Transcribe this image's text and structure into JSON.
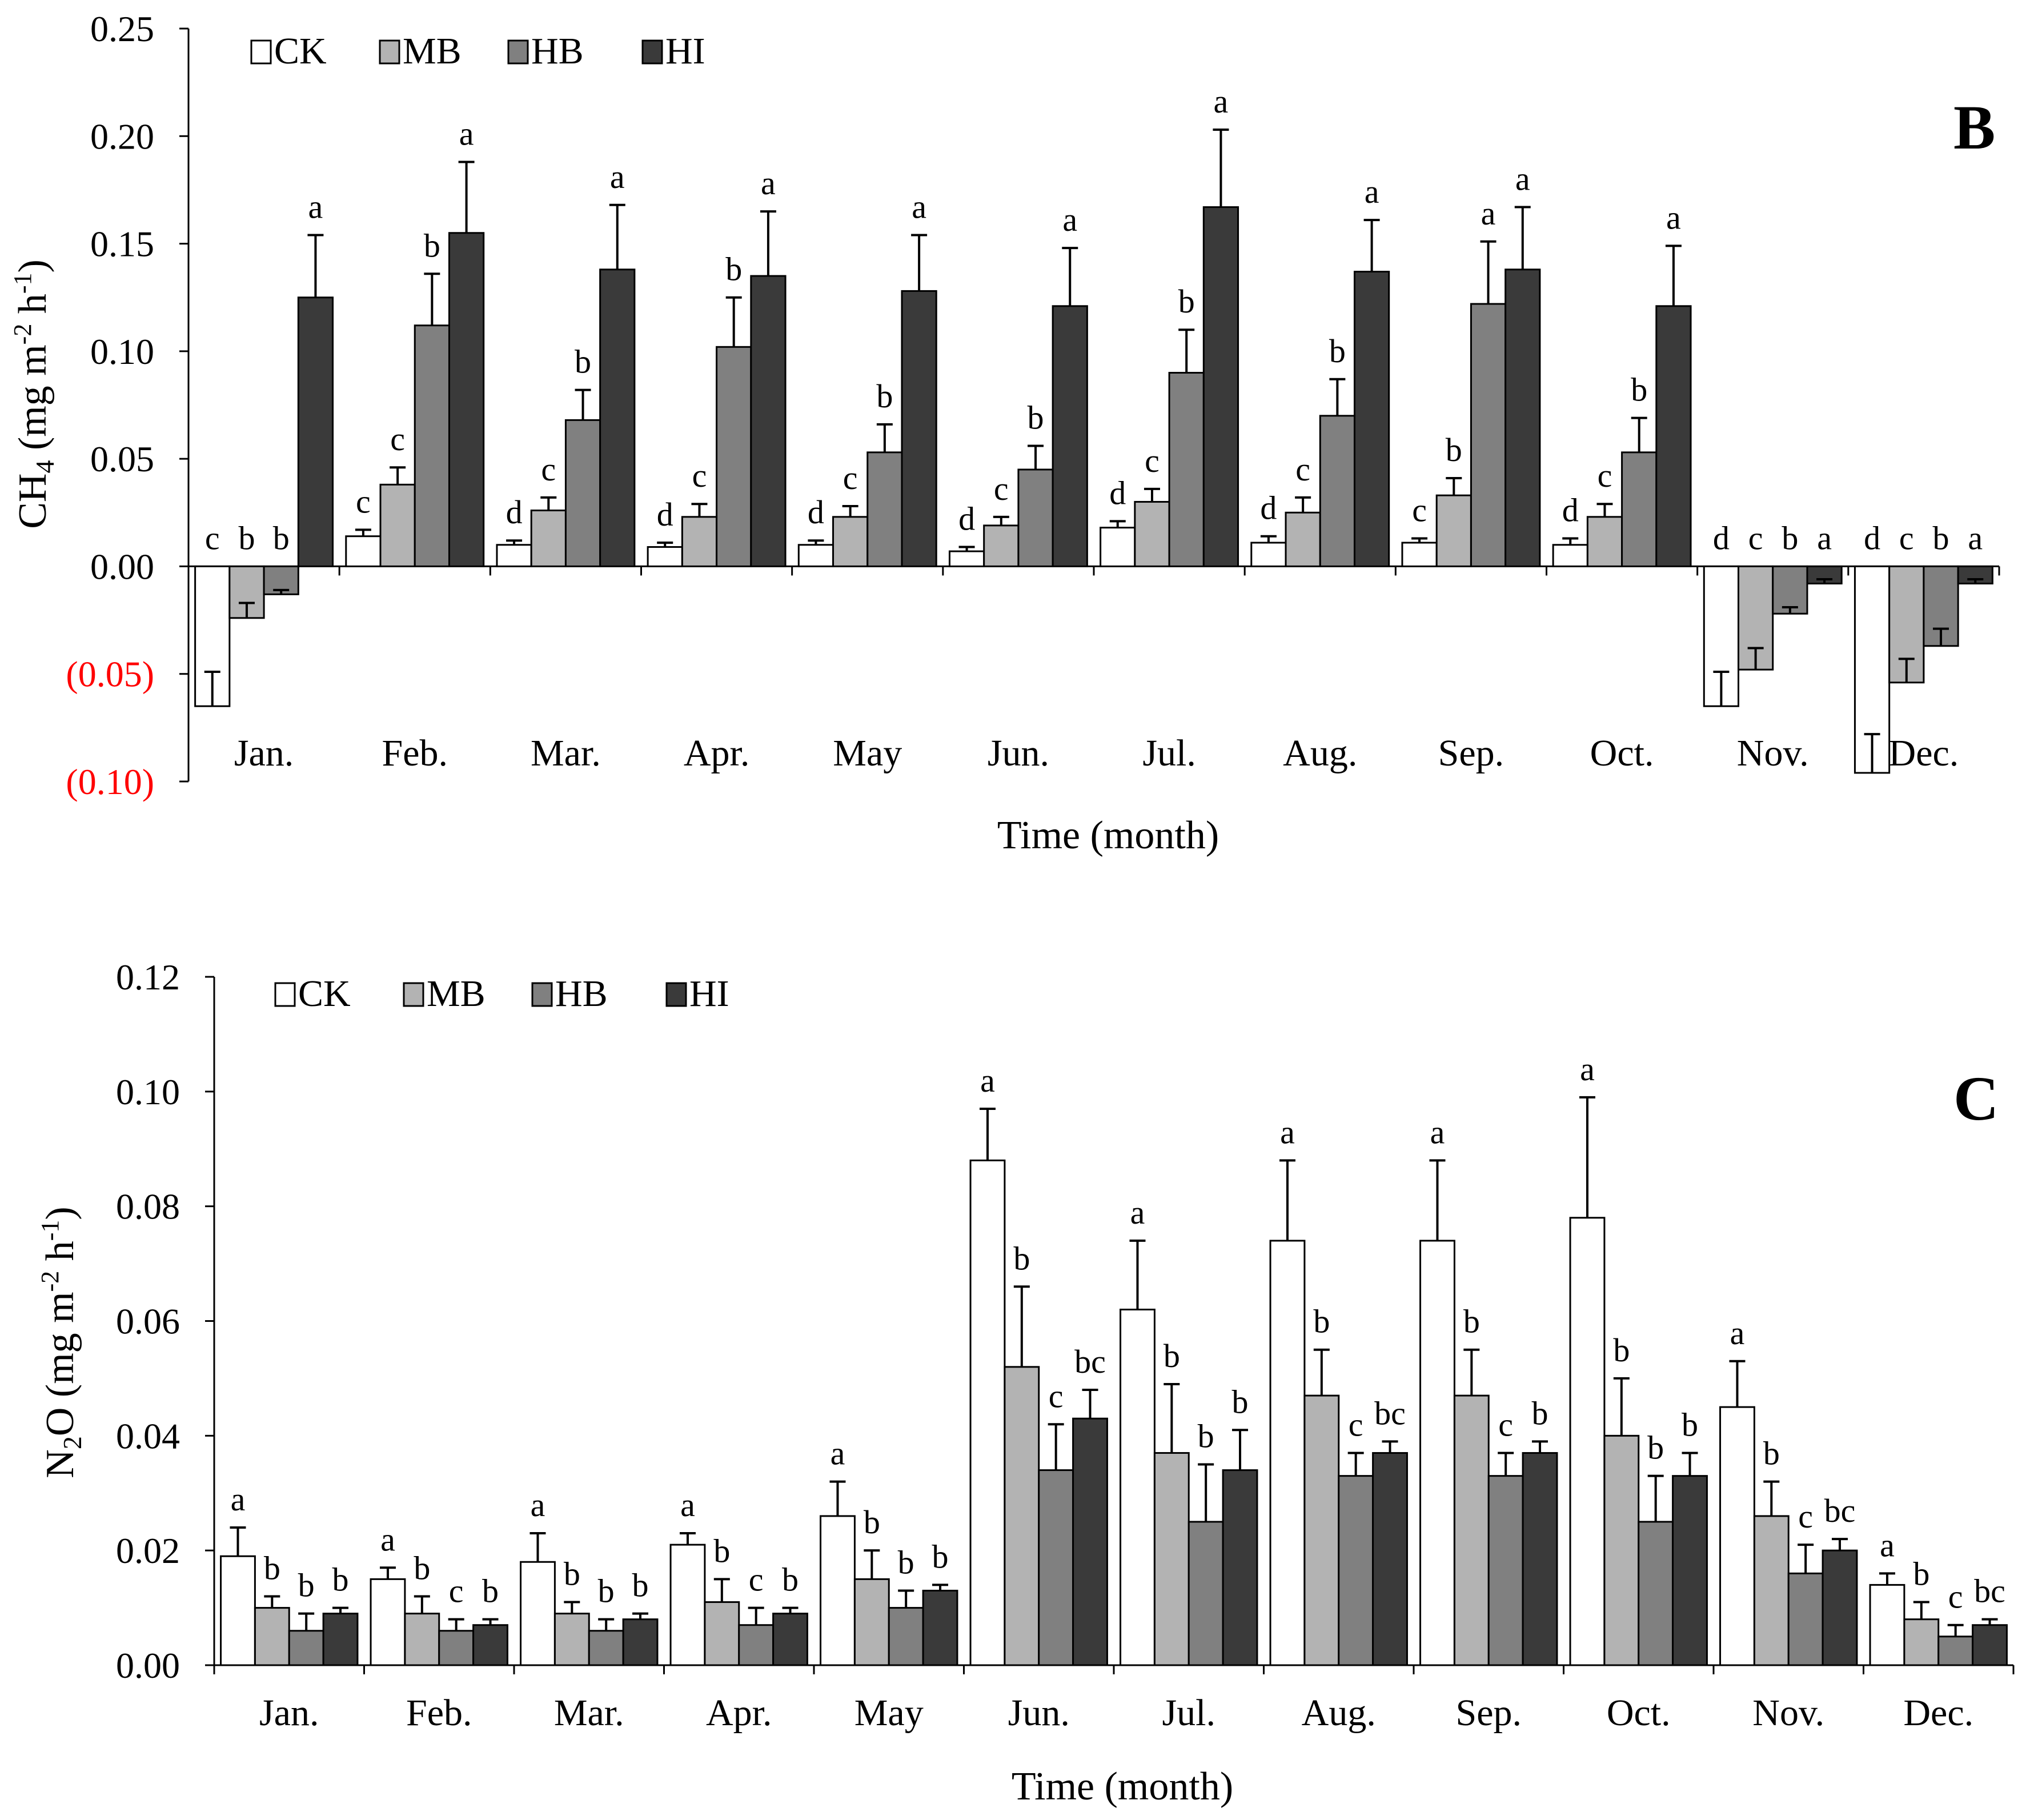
{
  "legend": [
    "CK",
    "MB",
    "HB",
    "HI"
  ],
  "colors": {
    "CK": "#ffffff",
    "MB": "#b3b3b3",
    "HB": "#808080",
    "HI": "#3a3a3a",
    "negative_tick": "#ff0000",
    "axis": "#000000"
  },
  "chart_data": [
    {
      "type": "bar",
      "panel_label": "B",
      "ylabel": "CH4 (mg m-2 h-1)",
      "xlabel": "Time (month)",
      "ylim": [
        -0.1,
        0.25
      ],
      "yticks": [
        0.25,
        0.2,
        0.15,
        0.1,
        0.05,
        0.0,
        -0.05,
        -0.1
      ],
      "ytick_labels": [
        "0.25",
        "0.20",
        "0.15",
        "0.10",
        "0.05",
        "0.00",
        "(0.05)",
        "(0.10)"
      ],
      "categories": [
        "Jan.",
        "Feb.",
        "Mar.",
        "Apr.",
        "May",
        "Jun.",
        "Jul.",
        "Aug.",
        "Sep.",
        "Oct.",
        "Nov.",
        "Dec."
      ],
      "series": [
        {
          "name": "CK",
          "values": [
            -0.065,
            0.014,
            0.01,
            0.009,
            0.01,
            0.007,
            0.018,
            0.011,
            0.011,
            0.01,
            -0.065,
            -0.096
          ],
          "errors": [
            0.016,
            0.003,
            0.002,
            0.002,
            0.002,
            0.002,
            0.003,
            0.003,
            0.002,
            0.003,
            0.016,
            0.018
          ],
          "letters": [
            "c",
            "c",
            "d",
            "d",
            "d",
            "d",
            "d",
            "d",
            "c",
            "d",
            "d",
            "d"
          ]
        },
        {
          "name": "MB",
          "values": [
            -0.024,
            0.038,
            0.026,
            0.023,
            0.023,
            0.019,
            0.03,
            0.025,
            0.033,
            0.023,
            -0.048,
            -0.054
          ],
          "errors": [
            0.007,
            0.008,
            0.006,
            0.006,
            0.005,
            0.004,
            0.006,
            0.007,
            0.008,
            0.006,
            0.01,
            0.011
          ],
          "letters": [
            "b",
            "c",
            "c",
            "c",
            "c",
            "c",
            "c",
            "c",
            "b",
            "c",
            "c",
            "c"
          ]
        },
        {
          "name": "HB",
          "values": [
            -0.013,
            0.112,
            0.068,
            0.102,
            0.053,
            0.045,
            0.09,
            0.07,
            0.122,
            0.053,
            -0.022,
            -0.037
          ],
          "errors": [
            0.002,
            0.024,
            0.014,
            0.023,
            0.013,
            0.011,
            0.02,
            0.017,
            0.029,
            0.016,
            0.003,
            0.008
          ],
          "letters": [
            "b",
            "b",
            "b",
            "b",
            "b",
            "b",
            "b",
            "b",
            "a",
            "b",
            "b",
            "b"
          ]
        },
        {
          "name": "HI",
          "values": [
            0.125,
            0.155,
            0.138,
            0.135,
            0.128,
            0.121,
            0.167,
            0.137,
            0.138,
            0.121,
            -0.008,
            -0.008
          ],
          "errors": [
            0.029,
            0.033,
            0.03,
            0.03,
            0.026,
            0.027,
            0.036,
            0.024,
            0.029,
            0.028,
            0.002,
            0.002
          ],
          "letters": [
            "a",
            "a",
            "a",
            "a",
            "a",
            "a",
            "a",
            "a",
            "a",
            "a",
            "a",
            "a"
          ]
        }
      ]
    },
    {
      "type": "bar",
      "panel_label": "C",
      "ylabel": "N2O (mg m-2 h-1)",
      "xlabel": "Time (month)",
      "ylim": [
        0,
        0.12
      ],
      "yticks": [
        0.12,
        0.1,
        0.08,
        0.06,
        0.04,
        0.02,
        0.0
      ],
      "ytick_labels": [
        "0.12",
        "0.10",
        "0.08",
        "0.06",
        "0.04",
        "0.02",
        "0.00"
      ],
      "categories": [
        "Jan.",
        "Feb.",
        "Mar.",
        "Apr.",
        "May",
        "Jun.",
        "Jul.",
        "Aug.",
        "Sep.",
        "Oct.",
        "Nov.",
        "Dec."
      ],
      "series": [
        {
          "name": "CK",
          "values": [
            0.019,
            0.015,
            0.018,
            0.021,
            0.026,
            0.088,
            0.062,
            0.074,
            0.074,
            0.078,
            0.045,
            0.014
          ],
          "errors": [
            0.005,
            0.002,
            0.005,
            0.002,
            0.006,
            0.009,
            0.012,
            0.014,
            0.014,
            0.021,
            0.008,
            0.002
          ],
          "letters": [
            "a",
            "a",
            "a",
            "a",
            "a",
            "a",
            "a",
            "a",
            "a",
            "a",
            "a",
            "a"
          ]
        },
        {
          "name": "MB",
          "values": [
            0.01,
            0.009,
            0.009,
            0.011,
            0.015,
            0.052,
            0.037,
            0.047,
            0.047,
            0.04,
            0.026,
            0.008
          ],
          "errors": [
            0.002,
            0.003,
            0.002,
            0.004,
            0.005,
            0.014,
            0.012,
            0.008,
            0.008,
            0.01,
            0.006,
            0.003
          ],
          "letters": [
            "b",
            "b",
            "b",
            "b",
            "b",
            "b",
            "b",
            "b",
            "b",
            "b",
            "b",
            "b"
          ]
        },
        {
          "name": "HB",
          "values": [
            0.006,
            0.006,
            0.006,
            0.007,
            0.01,
            0.034,
            0.025,
            0.033,
            0.033,
            0.025,
            0.016,
            0.005
          ],
          "errors": [
            0.003,
            0.002,
            0.002,
            0.003,
            0.003,
            0.008,
            0.01,
            0.004,
            0.004,
            0.008,
            0.005,
            0.002
          ],
          "letters": [
            "b",
            "c",
            "b",
            "c",
            "b",
            "c",
            "b",
            "c",
            "c",
            "b",
            "c",
            "c"
          ]
        },
        {
          "name": "HI",
          "values": [
            0.009,
            0.007,
            0.008,
            0.009,
            0.013,
            0.043,
            0.034,
            0.037,
            0.037,
            0.033,
            0.02,
            0.007
          ],
          "errors": [
            0.001,
            0.001,
            0.001,
            0.001,
            0.001,
            0.005,
            0.007,
            0.002,
            0.002,
            0.004,
            0.002,
            0.001
          ],
          "letters": [
            "b",
            "b",
            "b",
            "b",
            "b",
            "bc",
            "b",
            "bc",
            "b",
            "b",
            "bc",
            "bc"
          ]
        }
      ]
    }
  ]
}
